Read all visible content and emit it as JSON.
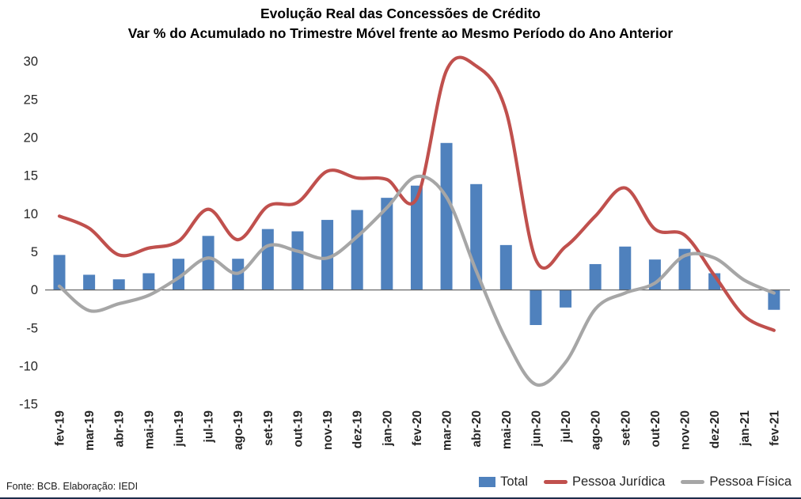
{
  "footer": {
    "source": "Fonte:  BCB. Elaboração: IEDI"
  },
  "colors": {
    "total": "#4F81BD",
    "pessoa_juridica": "#C0504D",
    "pessoa_fisica": "#A6A6A6",
    "axis_line": "#595959",
    "axis_text": "#262626",
    "bottom_rule": "#1c2b4a"
  },
  "chart_data": {
    "type": "combo-bar-line",
    "title": "Evolução Real das Concessões de Crédito",
    "subtitle": "Var % do Acumulado no Trimestre Móvel frente ao Mesmo Período do Ano Anterior",
    "categories": [
      "fev-19",
      "mar-19",
      "abr-19",
      "mai-19",
      "jun-19",
      "jul-19",
      "ago-19",
      "set-19",
      "out-19",
      "nov-19",
      "dez-19",
      "jan-20",
      "fev-20",
      "mar-20",
      "abr-20",
      "mai-20",
      "jun-20",
      "jul-20",
      "ago-20",
      "set-20",
      "out-20",
      "nov-20",
      "dez-20",
      "jan-21",
      "fev-21"
    ],
    "series": [
      {
        "name": "Total",
        "type": "bar",
        "color": "#4F81BD",
        "values": [
          4.6,
          2.0,
          1.4,
          2.2,
          4.1,
          7.1,
          4.1,
          8.0,
          7.7,
          9.2,
          10.5,
          12.1,
          13.7,
          19.3,
          13.9,
          5.9,
          -4.6,
          -2.3,
          3.4,
          5.7,
          4.0,
          5.4,
          2.2,
          0,
          -2.6
        ]
      },
      {
        "name": "Pessoa Jurídica",
        "type": "line",
        "color": "#C0504D",
        "values": [
          9.7,
          8.1,
          4.6,
          5.5,
          6.4,
          10.6,
          6.6,
          11.0,
          11.5,
          15.6,
          14.7,
          14.5,
          12.0,
          28.8,
          29.4,
          23.5,
          4.0,
          5.7,
          9.7,
          13.4,
          8.0,
          7.2,
          1.9,
          -3.4,
          -5.3
        ]
      },
      {
        "name": "Pessoa Física",
        "type": "line",
        "color": "#A6A6A6",
        "values": [
          0.5,
          -2.7,
          -1.8,
          -0.7,
          1.6,
          4.2,
          2.2,
          5.8,
          5.1,
          4.2,
          7.0,
          10.8,
          14.9,
          12.2,
          2.5,
          -6.5,
          -12.4,
          -9.5,
          -2.5,
          -0.4,
          0.9,
          4.5,
          4.2,
          1.3,
          -0.4
        ]
      }
    ],
    "xlabel": "",
    "ylabel": "",
    "ylim": [
      -15,
      30
    ],
    "yticks": [
      30,
      25,
      20,
      15,
      10,
      5,
      0,
      -5,
      -10,
      -15
    ],
    "grid": false,
    "legend_position": "bottom-right"
  }
}
